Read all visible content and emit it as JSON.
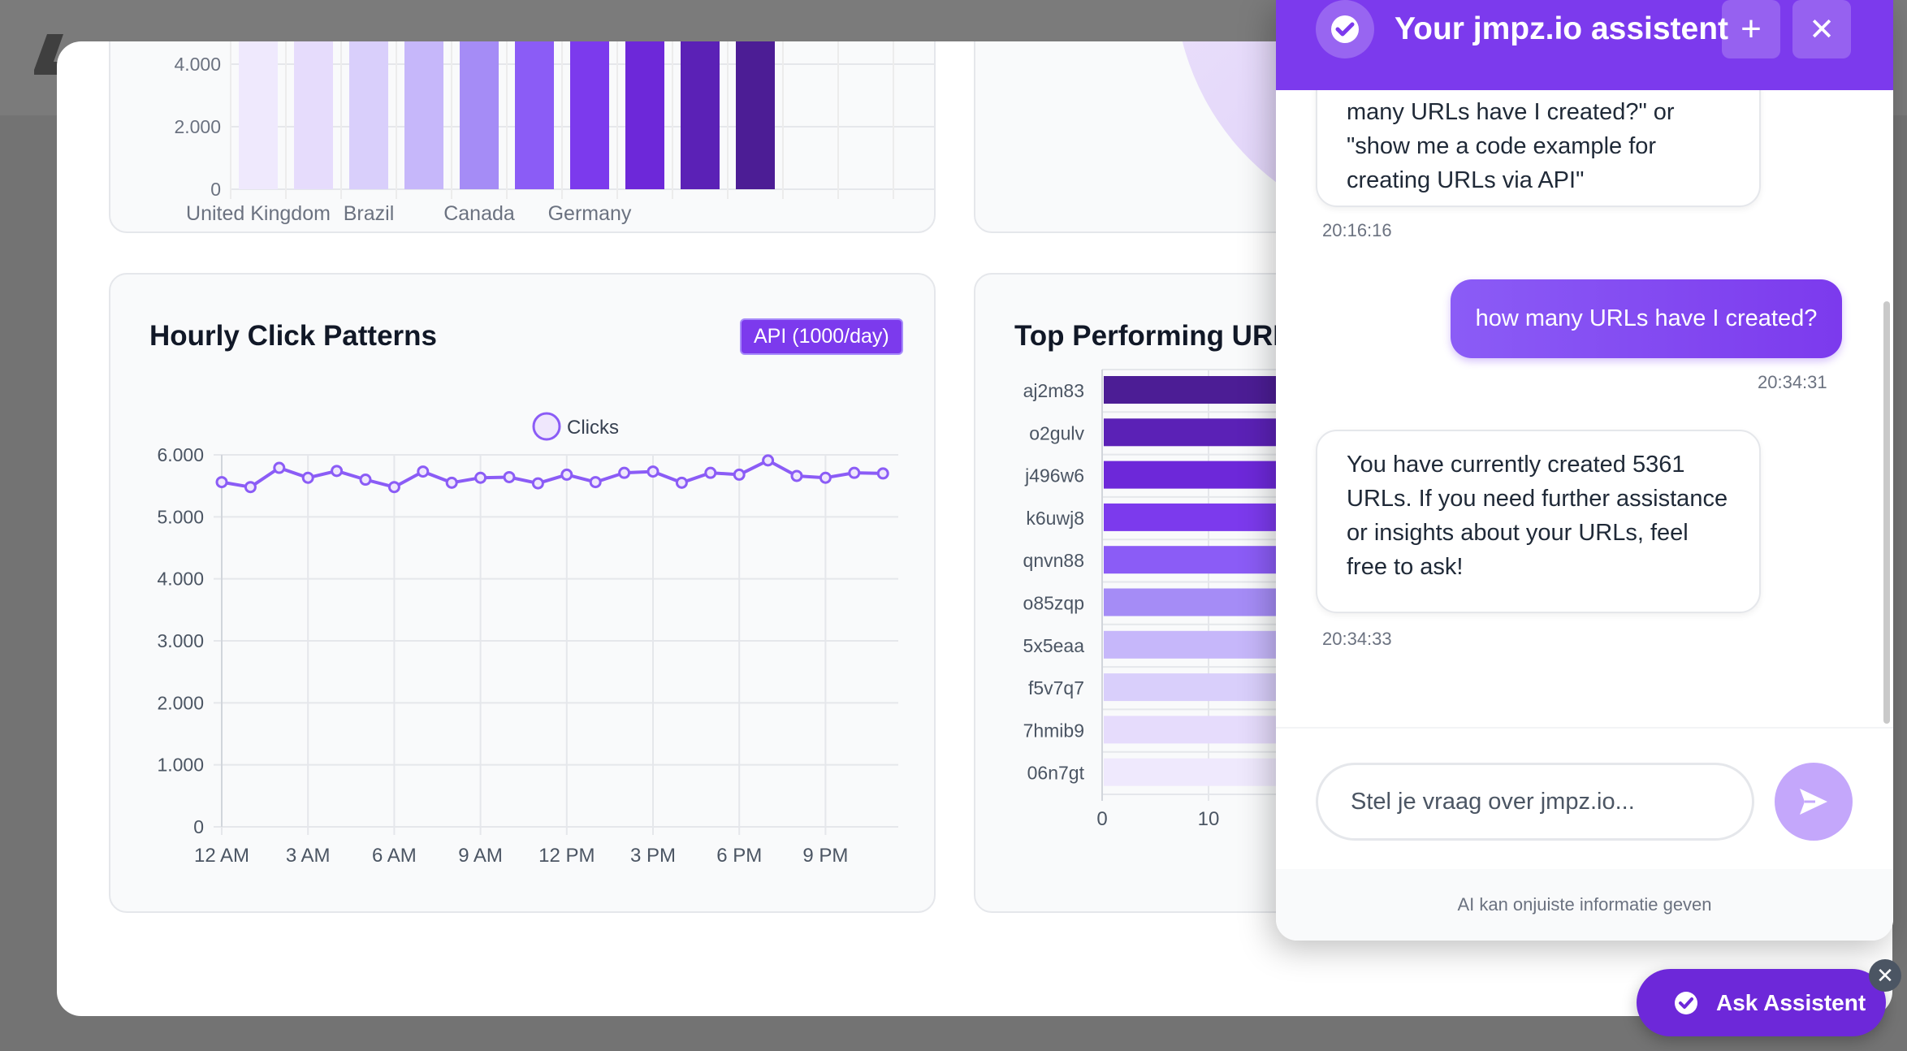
{
  "assistant": {
    "title": "Your jmpz.io assistent",
    "add_icon": "plus-icon",
    "close_icon": "close-icon",
    "messages": [
      {
        "role": "bot",
        "lines": [
          "many URLs have I created?\" or",
          "\"show me a code example for",
          "creating URLs via API\""
        ],
        "time": "20:16:16"
      },
      {
        "role": "user",
        "text": "how many URLs have I created?",
        "time": "20:34:31"
      },
      {
        "role": "bot",
        "lines": [
          "You have currently created 5361",
          "URLs. If you need further assistance",
          "or insights about your URLs, feel",
          "free to ask!"
        ],
        "time": "20:34:33"
      }
    ],
    "input_placeholder": "Stel je vraag over jmpz.io...",
    "disclaimer": "AI kan onjuiste informatie geven"
  },
  "ask_button": {
    "label": "Ask Assistent",
    "close_icon": "close-icon"
  },
  "countries_card": {
    "chart_data": {
      "type": "bar",
      "categories": [
        "United Kingdom",
        "",
        "Brazil",
        "",
        "Canada",
        "",
        "Germany",
        "",
        "",
        ""
      ],
      "values": [
        4800,
        4800,
        4800,
        4800,
        4800,
        4800,
        4800,
        4800,
        4800,
        4800
      ],
      "visible_tick_labels": [
        "United Kingdom",
        "Brazil",
        "Canada",
        "Germany"
      ],
      "y_ticks": [
        "0",
        "2.000",
        "4.000"
      ],
      "ylim": [
        0,
        4000
      ],
      "note": "bars are clipped at the top of the visible area"
    },
    "bar_colors": [
      "#efe9fd",
      "#e6dcfc",
      "#d9cffb",
      "#c6b7fa",
      "#a58cf6",
      "#8b5cf6",
      "#7c3aed",
      "#6d28d9",
      "#5b21b6",
      "#4c1d95"
    ]
  },
  "hourly_card": {
    "title": "Hourly Click Patterns",
    "badge": "API (1000/day)",
    "chart_data": {
      "type": "line",
      "legend": "Clicks",
      "x_ticks": [
        "12 AM",
        "3 AM",
        "6 AM",
        "9 AM",
        "12 PM",
        "3 PM",
        "6 PM",
        "9 PM"
      ],
      "y_ticks": [
        "0",
        "1.000",
        "2.000",
        "3.000",
        "4.000",
        "5.000",
        "6.000"
      ],
      "ylim": [
        0,
        6000
      ],
      "x": [
        0,
        1,
        2,
        3,
        4,
        5,
        6,
        7,
        8,
        9,
        10,
        11,
        12,
        13,
        14,
        15,
        16,
        17,
        18,
        19,
        20,
        21,
        22,
        23
      ],
      "series": [
        {
          "name": "Clicks",
          "values": [
            5560,
            5480,
            5790,
            5630,
            5740,
            5600,
            5480,
            5730,
            5550,
            5630,
            5640,
            5540,
            5680,
            5560,
            5710,
            5730,
            5550,
            5710,
            5680,
            5910,
            5660,
            5630,
            5710,
            5700
          ]
        }
      ],
      "color": "#8b5cf6"
    }
  },
  "top_urls_card": {
    "title": "Top Performing URLs",
    "chart_data": {
      "type": "bar",
      "orientation": "horizontal",
      "categories": [
        "aj2m83",
        "o2gulv",
        "j496w6",
        "k6uwj8",
        "qnvn88",
        "o85zqp",
        "5x5eaa",
        "f5v7q7",
        "7hmib9",
        "06n7gt"
      ],
      "x_ticks": [
        "0",
        "10"
      ],
      "values": [
        20,
        20,
        20,
        20,
        20,
        20,
        20,
        20,
        20,
        20
      ],
      "note": "bars continue behind the assistant panel"
    },
    "bar_colors": [
      "#4c1d95",
      "#5b21b6",
      "#6d28d9",
      "#7c3aed",
      "#8b5cf6",
      "#a58cf6",
      "#c6b7fa",
      "#d9cffb",
      "#e6dcfc",
      "#efe9fd"
    ]
  }
}
